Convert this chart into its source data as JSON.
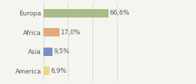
{
  "categories": [
    "Europa",
    "Africa",
    "Asia",
    "America"
  ],
  "values": [
    66.6,
    17.0,
    9.5,
    6.9
  ],
  "labels": [
    "66,6%",
    "17,0%",
    "9,5%",
    "6,9%"
  ],
  "bar_colors": [
    "#a8bc8a",
    "#e8a97a",
    "#7b8fc0",
    "#efd97a"
  ],
  "background_color": "#f5f5f0",
  "label_fontsize": 6.5,
  "cat_fontsize": 6.5,
  "xlim": [
    0,
    100
  ],
  "bar_height": 0.45,
  "grid_lines": [
    0,
    25,
    50,
    75,
    100
  ],
  "grid_color": "#cccccc",
  "text_color": "#555555"
}
